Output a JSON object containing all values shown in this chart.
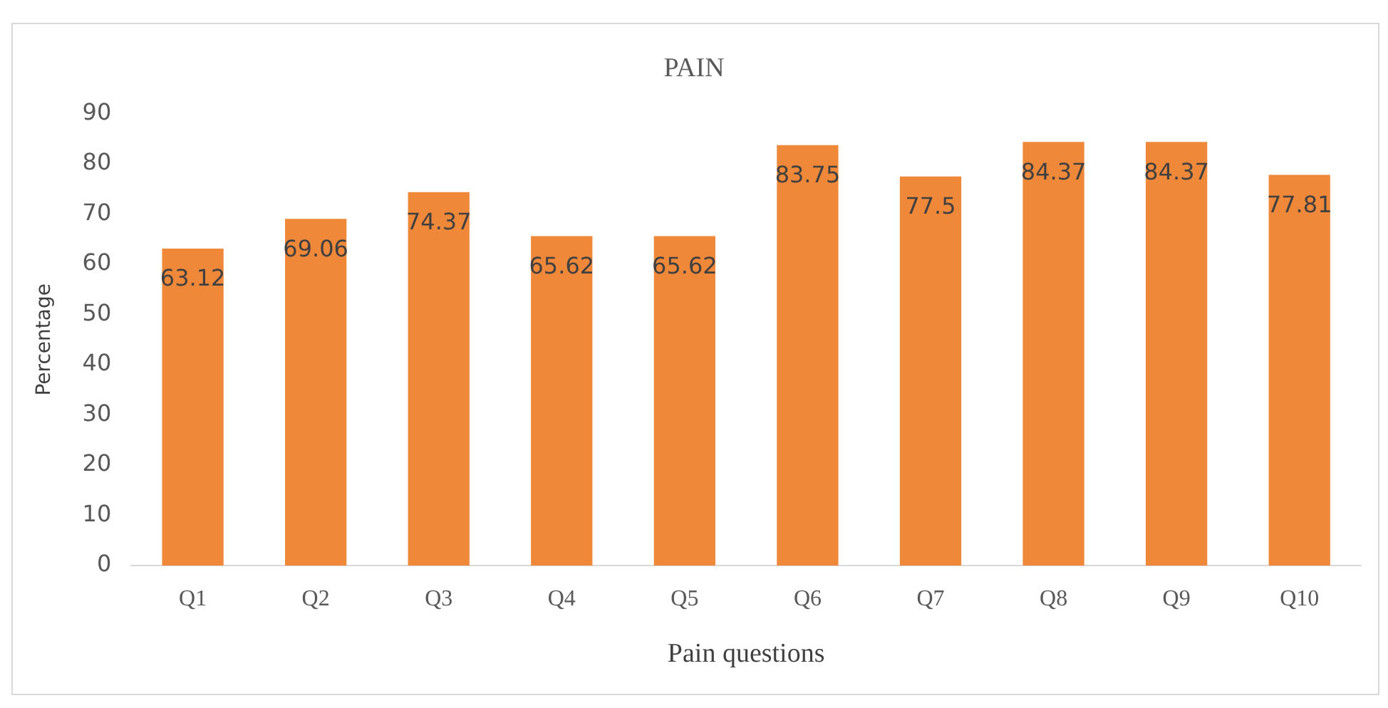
{
  "chart_data": {
    "type": "bar",
    "title": "PAIN",
    "xlabel": "Pain questions",
    "ylabel": "Percentage",
    "categories": [
      "Q1",
      "Q2",
      "Q3",
      "Q4",
      "Q5",
      "Q6",
      "Q7",
      "Q8",
      "Q9",
      "Q10"
    ],
    "values": [
      63.12,
      69.06,
      74.37,
      65.62,
      65.62,
      83.75,
      77.5,
      84.37,
      84.37,
      77.81
    ],
    "color": "#f0883a",
    "ylim": [
      0,
      90
    ],
    "yticks": [
      0,
      10,
      20,
      30,
      40,
      50,
      60,
      70,
      80,
      90
    ],
    "grid": false,
    "legend": false,
    "data_labels": true
  }
}
